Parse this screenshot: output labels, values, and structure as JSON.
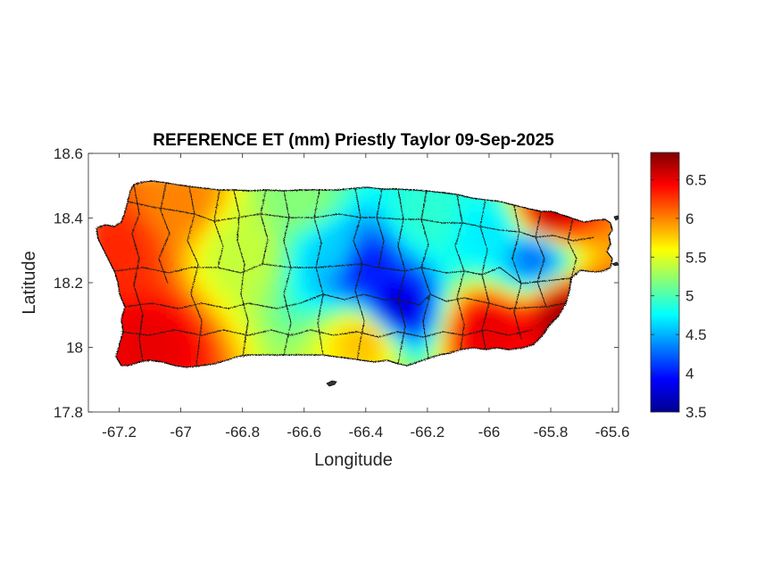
{
  "chart_data": {
    "type": "heatmap",
    "title": "REFERENCE ET (mm) Priestly Taylor 09-Sep-2025",
    "xlabel": "Longitude",
    "ylabel": "Latitude",
    "xlim": [
      -67.3,
      -65.58
    ],
    "ylim": [
      17.8,
      18.6
    ],
    "x_ticks": [
      -67.2,
      -67,
      -66.8,
      -66.6,
      -66.4,
      -66.2,
      -66,
      -65.8,
      -65.6
    ],
    "x_tick_labels": [
      "-67.2",
      "-67",
      "-66.8",
      "-66.6",
      "-66.4",
      "-66.2",
      "-66",
      "-65.8",
      "-65.6"
    ],
    "y_ticks": [
      17.8,
      18,
      18.2,
      18.4,
      18.6
    ],
    "y_tick_labels": [
      "17.8",
      "18",
      "18.2",
      "18.4",
      "18.6"
    ],
    "colorbar": {
      "range": [
        3.5,
        6.85
      ],
      "ticks": [
        3.5,
        4,
        4.5,
        5,
        5.5,
        6,
        6.5
      ],
      "tick_labels": [
        "3.5",
        "4",
        "4.5",
        "5",
        "5.5",
        "6",
        "6.5"
      ],
      "colormap": "jet",
      "location": "right"
    },
    "field_samples": [
      {
        "lon": -67.2,
        "lat": 18.3,
        "value": 6.3
      },
      {
        "lon": -67.0,
        "lat": 18.45,
        "value": 6.0
      },
      {
        "lon": -67.1,
        "lat": 18.0,
        "value": 6.5
      },
      {
        "lon": -66.8,
        "lat": 18.3,
        "value": 5.4
      },
      {
        "lon": -66.6,
        "lat": 18.45,
        "value": 5.2
      },
      {
        "lon": -66.5,
        "lat": 18.3,
        "value": 4.6
      },
      {
        "lon": -66.4,
        "lat": 18.25,
        "value": 4.0
      },
      {
        "lon": -66.3,
        "lat": 18.12,
        "value": 3.8
      },
      {
        "lon": -66.4,
        "lat": 18.02,
        "value": 5.8
      },
      {
        "lon": -66.2,
        "lat": 18.4,
        "value": 4.9
      },
      {
        "lon": -66.0,
        "lat": 18.35,
        "value": 4.7
      },
      {
        "lon": -65.85,
        "lat": 18.28,
        "value": 4.3
      },
      {
        "lon": -65.8,
        "lat": 18.4,
        "value": 6.6
      },
      {
        "lon": -66.0,
        "lat": 18.05,
        "value": 6.5
      },
      {
        "lon": -65.75,
        "lat": 18.1,
        "value": 6.7
      }
    ]
  }
}
